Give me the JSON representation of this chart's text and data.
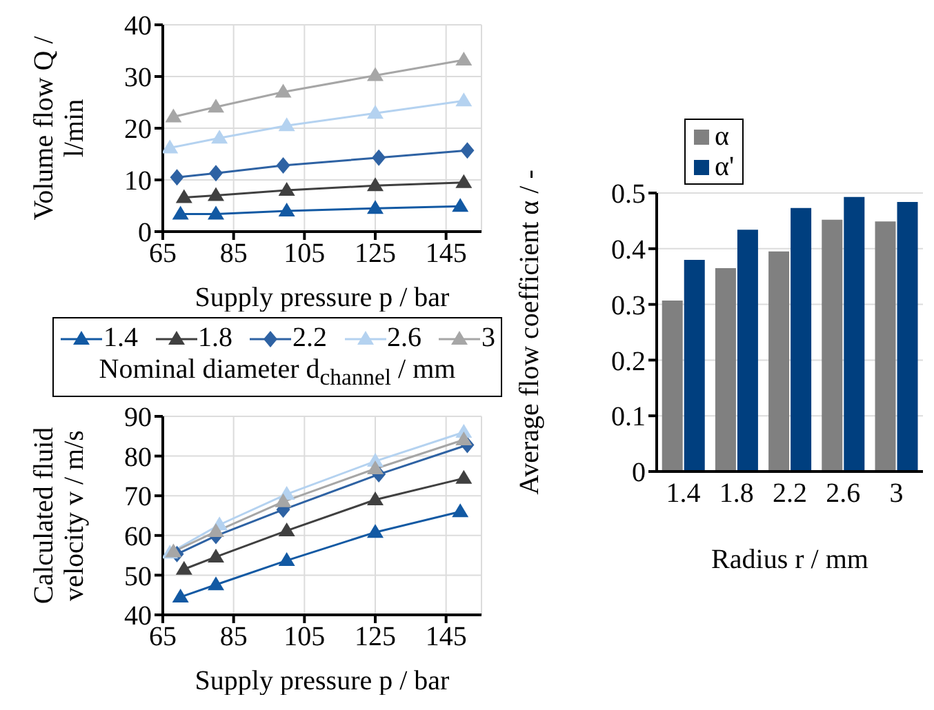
{
  "chart_data": [
    {
      "type": "line",
      "xlabel": "Supply pressure p / bar",
      "ylabel": "Volume flow Q / l/min",
      "legend_title": "Nominal diameter d$_{channel}$ / mm",
      "legend": "bottom",
      "grid": true,
      "xlim": [
        65,
        155
      ],
      "xticks": [
        65,
        85,
        105,
        125,
        145
      ],
      "ylim": [
        0,
        40
      ],
      "yticks": [
        0,
        10,
        20,
        30,
        40
      ],
      "series": [
        {
          "name": "1.4",
          "color": "#1259a3",
          "marker": "triangle",
          "x": [
            70,
            80,
            100,
            125,
            149
          ],
          "values": [
            3.4,
            3.4,
            4.0,
            4.5,
            4.9
          ]
        },
        {
          "name": "1.8",
          "color": "#404040",
          "marker": "triangle",
          "x": [
            71,
            80,
            100,
            125,
            150
          ],
          "values": [
            6.6,
            7.0,
            8.0,
            8.9,
            9.5
          ]
        },
        {
          "name": "2.2",
          "color": "#2e62a3",
          "marker": "diamond",
          "x": [
            69,
            80,
            99,
            126,
            151
          ],
          "values": [
            10.5,
            11.3,
            12.8,
            14.3,
            15.7
          ]
        },
        {
          "name": "2.6",
          "color": "#b4d2f0",
          "marker": "triangle",
          "x": [
            67,
            81,
            100,
            125,
            150
          ],
          "values": [
            16.2,
            18.1,
            20.5,
            22.9,
            25.3
          ]
        },
        {
          "name": "3",
          "color": "#a6a6a6",
          "marker": "triangle",
          "x": [
            68,
            80,
            99,
            125,
            150
          ],
          "values": [
            22.2,
            24.1,
            27.0,
            30.2,
            33.2
          ]
        }
      ]
    },
    {
      "type": "line",
      "xlabel": "Supply pressure p / bar",
      "ylabel": "Calculated fluid velocity v / m/s",
      "grid": true,
      "xlim": [
        65,
        155
      ],
      "xticks": [
        65,
        85,
        105,
        125,
        145
      ],
      "ylim": [
        40,
        90
      ],
      "yticks": [
        40,
        50,
        60,
        70,
        80,
        90
      ],
      "series": [
        {
          "color": "#1259a3",
          "marker": "triangle",
          "x": [
            70,
            80,
            100,
            125,
            149
          ],
          "values": [
            44.5,
            47.6,
            53.7,
            60.8,
            66.0
          ]
        },
        {
          "color": "#404040",
          "marker": "triangle",
          "x": [
            71,
            80,
            100,
            125,
            150
          ],
          "values": [
            51.5,
            54.6,
            61.2,
            69.0,
            74.4
          ]
        },
        {
          "color": "#2e62a3",
          "marker": "diamond",
          "x": [
            69,
            80,
            99,
            126,
            151
          ],
          "values": [
            55.3,
            59.9,
            66.5,
            75.4,
            82.8
          ]
        },
        {
          "color": "#b4d2f0",
          "marker": "triangle",
          "x": [
            67,
            81,
            100,
            125,
            150
          ],
          "values": [
            55.6,
            62.7,
            70.4,
            78.7,
            86.0
          ]
        },
        {
          "color": "#a6a6a6",
          "marker": "triangle",
          "x": [
            68,
            80,
            99,
            125,
            150
          ],
          "values": [
            55.9,
            61.0,
            68.5,
            76.8,
            84.1
          ]
        }
      ]
    },
    {
      "type": "bar",
      "xlabel": "Radius r / mm",
      "ylabel": "Average flow coefficient α / -",
      "legend": "top left",
      "grid": "y",
      "categories": [
        "1.4",
        "1.8",
        "2.2",
        "2.6",
        "3"
      ],
      "ylim": [
        0,
        0.5
      ],
      "yticks": [
        0,
        0.1,
        0.2,
        0.3,
        0.4,
        0.5
      ],
      "series": [
        {
          "name": "α",
          "color": "#808080",
          "values": [
            0.307,
            0.365,
            0.395,
            0.452,
            0.449
          ]
        },
        {
          "name": "α'",
          "color": "#003f7f",
          "values": [
            0.38,
            0.434,
            0.473,
            0.493,
            0.484
          ]
        }
      ]
    }
  ]
}
